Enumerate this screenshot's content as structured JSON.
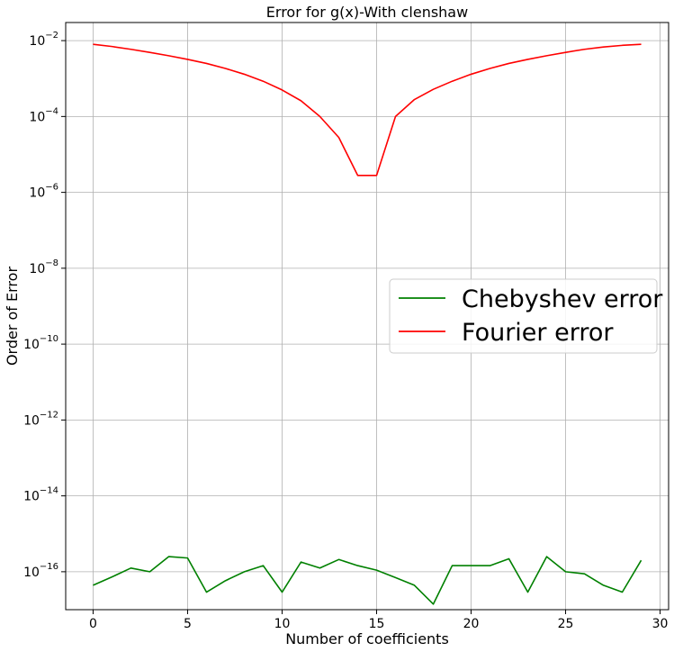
{
  "chart_data": {
    "type": "line",
    "title": "Error for g(x)-With clenshaw",
    "xlabel": "Number of coefficients",
    "ylabel": "Order of Error",
    "xlim": [
      -1.45,
      30.45
    ],
    "ylim": [
      1e-17,
      0.03
    ],
    "yscale": "log",
    "grid": true,
    "legend_position": "center-right",
    "x_ticks": [
      0,
      5,
      10,
      15,
      20,
      25,
      30
    ],
    "x_tick_labels": [
      "0",
      "5",
      "10",
      "15",
      "20",
      "25",
      "30"
    ],
    "y_ticks": [
      {
        "value": 1e-16,
        "base": "10",
        "exponent": "−16"
      },
      {
        "value": 1e-14,
        "base": "10",
        "exponent": "−14"
      },
      {
        "value": 1e-12,
        "base": "10",
        "exponent": "−12"
      },
      {
        "value": 1e-10,
        "base": "10",
        "exponent": "−10"
      },
      {
        "value": 1e-08,
        "base": "10",
        "exponent": "−8"
      },
      {
        "value": 1e-06,
        "base": "10",
        "exponent": "−6"
      },
      {
        "value": 0.0001,
        "base": "10",
        "exponent": "−4"
      },
      {
        "value": 0.01,
        "base": "10",
        "exponent": "−2"
      }
    ],
    "x": [
      0,
      1,
      2,
      3,
      4,
      5,
      6,
      7,
      8,
      9,
      10,
      11,
      12,
      13,
      14,
      15,
      16,
      17,
      18,
      19,
      20,
      21,
      22,
      23,
      24,
      25,
      26,
      27,
      28,
      29
    ],
    "series": [
      {
        "name": "Chebyshev error",
        "color": "#008000",
        "values": [
          4.4e-17,
          7.3e-17,
          1.25e-16,
          1e-16,
          2.5e-16,
          2.3e-16,
          2.9e-17,
          5.8e-17,
          1e-16,
          1.45e-16,
          2.9e-17,
          1.8e-16,
          1.25e-16,
          2.1e-16,
          1.45e-16,
          1.1e-16,
          7e-17,
          4.4e-17,
          1.4e-17,
          1.45e-16,
          1.45e-16,
          1.45e-16,
          2.2e-16,
          2.9e-17,
          2.5e-16,
          1e-16,
          8.8e-17,
          4.4e-17,
          2.9e-17,
          2e-16
        ]
      },
      {
        "name": "Fourier error",
        "color": "#ff0000",
        "values": [
          0.008,
          0.007,
          0.0059,
          0.0049,
          0.004,
          0.0032,
          0.0025,
          0.00185,
          0.0013,
          0.00085,
          0.0005,
          0.00026,
          0.0001,
          2.8e-05,
          2.8e-06,
          2.8e-06,
          0.0001,
          0.00028,
          0.00052,
          0.00085,
          0.0013,
          0.00185,
          0.0025,
          0.0032,
          0.004,
          0.0049,
          0.0059,
          0.0068,
          0.0075,
          0.008
        ]
      }
    ]
  }
}
